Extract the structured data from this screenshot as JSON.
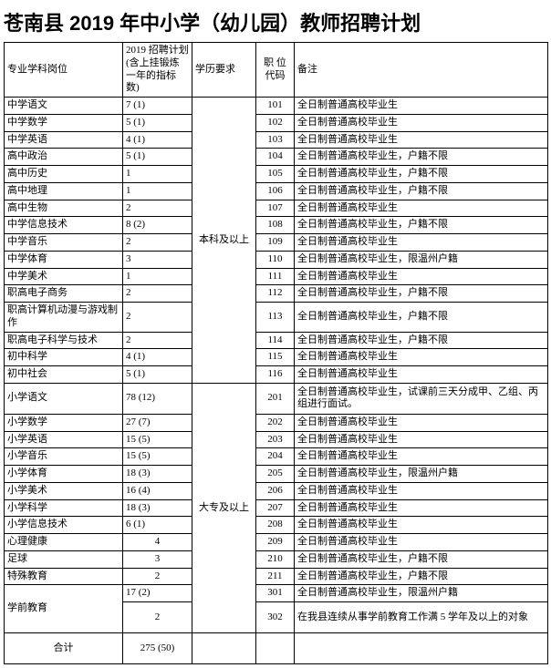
{
  "title": "苍南县 2019 年中小学（幼儿园）教师招聘计划",
  "headers": {
    "subject": "专业学科岗位",
    "plan": "2019 招聘计划 (含上挂锻炼一年的指标数)",
    "edu": "学历要求",
    "code": "职 位代码",
    "note": "备注"
  },
  "edu_levels": {
    "bachelor": "本科及以上",
    "college": "大专及以上"
  },
  "rows_bachelor": [
    {
      "s": "中学语文",
      "p": "7 (1)",
      "c": "101",
      "n": "全日制普通高校毕业生"
    },
    {
      "s": "中学数学",
      "p": "5 (1)",
      "c": "102",
      "n": "全日制普通高校毕业生"
    },
    {
      "s": "中学英语",
      "p": "4 (1)",
      "c": "103",
      "n": "全日制普通高校毕业生"
    },
    {
      "s": "高中政治",
      "p": "5 (1)",
      "c": "104",
      "n": "全日制普通高校毕业生，户籍不限"
    },
    {
      "s": "高中历史",
      "p": "1",
      "c": "105",
      "n": "全日制普通高校毕业生，户籍不限"
    },
    {
      "s": "高中地理",
      "p": "1",
      "c": "106",
      "n": "全日制普通高校毕业生，户籍不限"
    },
    {
      "s": "高中生物",
      "p": "2",
      "c": "107",
      "n": "全日制普通高校毕业生"
    },
    {
      "s": "中学信息技术",
      "p": "8 (2)",
      "c": "108",
      "n": "全日制普通高校毕业生，户籍不限"
    },
    {
      "s": "中学音乐",
      "p": "2",
      "c": "109",
      "n": "全日制普通高校毕业生"
    },
    {
      "s": "中学体育",
      "p": "3",
      "c": "110",
      "n": "全日制普通高校毕业生，限温州户籍"
    },
    {
      "s": "中学美术",
      "p": "1",
      "c": "111",
      "n": "全日制普通高校毕业生"
    },
    {
      "s": "职高电子商务",
      "p": "2",
      "c": "112",
      "n": "全日制普通高校毕业生，户籍不限"
    },
    {
      "s": "职高计算机动漫与游戏制作",
      "p": "2",
      "c": "113",
      "n": "全日制普通高校毕业生，户籍不限"
    },
    {
      "s": "职高电子科学与技术",
      "p": "2",
      "c": "114",
      "n": "全日制普通高校毕业生，户籍不限"
    },
    {
      "s": "初中科学",
      "p": "4 (1)",
      "c": "115",
      "n": "全日制普通高校毕业生"
    },
    {
      "s": "初中社会",
      "p": "5 (1)",
      "c": "116",
      "n": "全日制普通高校毕业生"
    }
  ],
  "rows_college": [
    {
      "s": "小学语文",
      "p": "78 (12)",
      "c": "201",
      "n": "全日制普通高校毕业生，试课前三天分成甲、乙组、丙组进行面试。",
      "tall": true
    },
    {
      "s": "小学数学",
      "p": "27 (7)",
      "c": "202",
      "n": "全日制普通高校毕业生"
    },
    {
      "s": "小学英语",
      "p": "15 (5)",
      "c": "203",
      "n": "全日制普通高校毕业生"
    },
    {
      "s": "小学音乐",
      "p": "15 (5)",
      "c": "204",
      "n": "全日制普通高校毕业生"
    },
    {
      "s": "小学体育",
      "p": "18 (3)",
      "c": "205",
      "n": "全日制普通高校毕业生，限温州户籍"
    },
    {
      "s": "小学美术",
      "p": "16 (4)",
      "c": "206",
      "n": "全日制普通高校毕业生"
    },
    {
      "s": "小学科学",
      "p": "18 (3)",
      "c": "207",
      "n": "全日制普通高校毕业生"
    },
    {
      "s": "小学信息技术",
      "p": "6 (1)",
      "c": "208",
      "n": "全日制普通高校毕业生"
    },
    {
      "s": "心理健康",
      "p": "4",
      "c": "209",
      "n": "全日制普通高校毕业生",
      "pcenter": true
    },
    {
      "s": "足球",
      "p": "3",
      "c": "210",
      "n": "全日制普通高校毕业生，户籍不限",
      "pcenter": true
    },
    {
      "s": "特殊教育",
      "p": "2",
      "c": "211",
      "n": "全日制普通高校毕业生，户籍不限",
      "pcenter": true
    }
  ],
  "rows_pre": [
    {
      "s": "",
      "p": "17 (2)",
      "c": "301",
      "n": "全日制普通高校毕业生，限温州户籍"
    },
    {
      "s": "学前教育",
      "p": "2",
      "c": "302",
      "n": "在我县连续从事学前教育工作满 5 学年及以上的对象",
      "pcenter": true,
      "tall": true
    }
  ],
  "total": {
    "label": "合计",
    "value": "275 (50)"
  },
  "style": {
    "border_color": "#000000",
    "bg": "#ffffff",
    "font_size_title": 22,
    "font_size_cell": 11
  }
}
